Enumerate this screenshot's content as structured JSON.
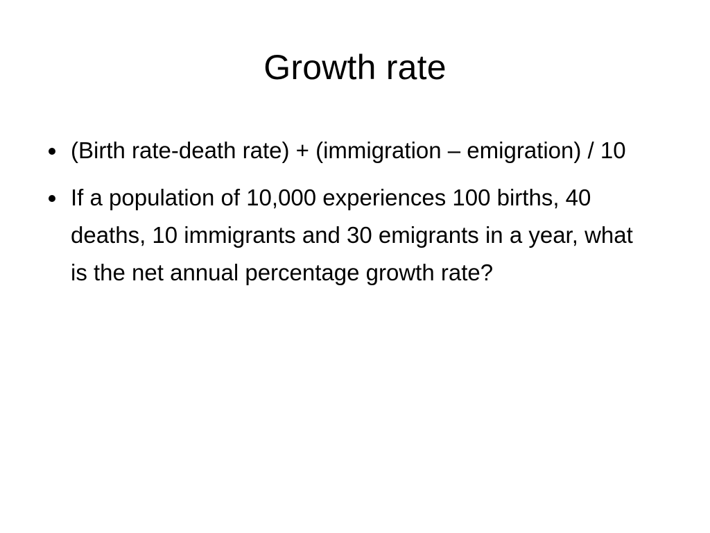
{
  "slide": {
    "title": "Growth rate",
    "bullets": [
      {
        "text": "(Birth rate-death rate) + (immigration – emigration) / 10"
      },
      {
        "text": "If a population of 10,000 experiences 100 births, 40 deaths, 10 immigrants and 30 emigrants in a year, what is the net annual percentage growth rate?"
      }
    ]
  }
}
